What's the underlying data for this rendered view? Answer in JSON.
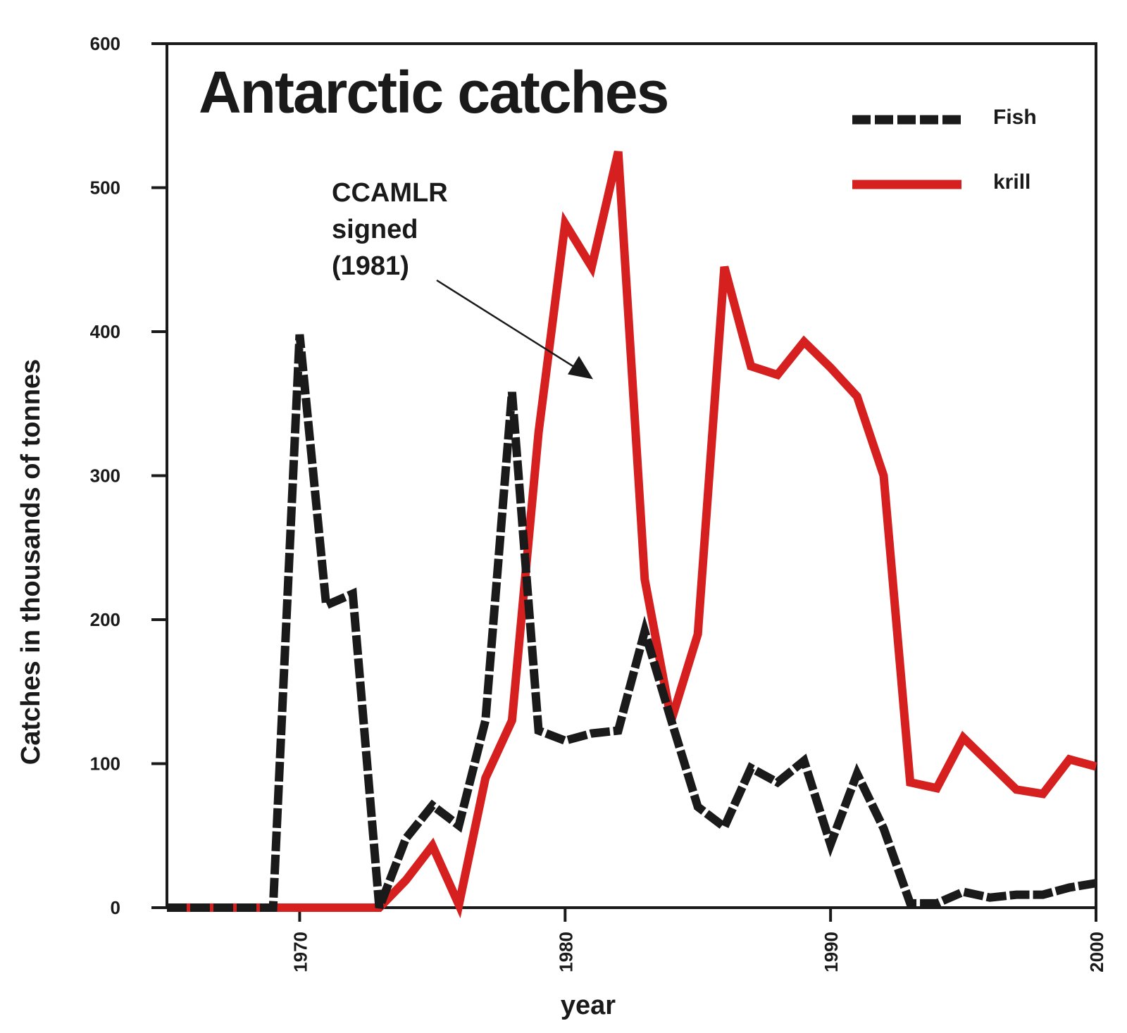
{
  "chart_data": {
    "type": "line",
    "title": "Antarctic catches",
    "xlabel": "year",
    "ylabel": "Catches in thousands of tonnes",
    "xlim": [
      1965,
      2000
    ],
    "ylim": [
      0,
      600
    ],
    "x_ticks": [
      1970,
      1980,
      1990,
      2000
    ],
    "y_ticks": [
      0,
      100,
      200,
      300,
      400,
      500,
      600
    ],
    "grid": false,
    "legend_position": "top-right",
    "annotation": {
      "lines": [
        "CCAMLR",
        "signed",
        "(1981)"
      ],
      "points_to_year": 1981
    },
    "series": [
      {
        "name": "Fish",
        "color": "#1a1a1a",
        "style": "dashed",
        "points": [
          [
            1965,
            0
          ],
          [
            1969,
            0
          ],
          [
            1970,
            398
          ],
          [
            1971,
            210
          ],
          [
            1972,
            218
          ],
          [
            1973,
            0
          ],
          [
            1974,
            48
          ],
          [
            1975,
            71
          ],
          [
            1976,
            57
          ],
          [
            1977,
            130
          ],
          [
            1978,
            358
          ],
          [
            1979,
            123
          ],
          [
            1980,
            116
          ],
          [
            1981,
            121
          ],
          [
            1982,
            123
          ],
          [
            1983,
            192
          ],
          [
            1984,
            130
          ],
          [
            1985,
            70
          ],
          [
            1986,
            56
          ],
          [
            1987,
            97
          ],
          [
            1988,
            87
          ],
          [
            1989,
            102
          ],
          [
            1990,
            44
          ],
          [
            1991,
            93
          ],
          [
            1992,
            55
          ],
          [
            1993,
            3
          ],
          [
            1994,
            3
          ],
          [
            1995,
            11
          ],
          [
            1996,
            7
          ],
          [
            1997,
            9
          ],
          [
            1998,
            9
          ],
          [
            1999,
            14
          ],
          [
            2000,
            17
          ]
        ]
      },
      {
        "name": "krill",
        "color": "#d62020",
        "style": "solid",
        "points": [
          [
            1965,
            0
          ],
          [
            1973,
            0
          ],
          [
            1974,
            19
          ],
          [
            1975,
            43
          ],
          [
            1976,
            2
          ],
          [
            1977,
            90
          ],
          [
            1978,
            130
          ],
          [
            1979,
            330
          ],
          [
            1980,
            475
          ],
          [
            1981,
            445
          ],
          [
            1982,
            525
          ],
          [
            1983,
            228
          ],
          [
            1984,
            130
          ],
          [
            1985,
            190
          ],
          [
            1986,
            445
          ],
          [
            1987,
            376
          ],
          [
            1988,
            370
          ],
          [
            1989,
            393
          ],
          [
            1990,
            375
          ],
          [
            1991,
            355
          ],
          [
            1992,
            300
          ],
          [
            1993,
            87
          ],
          [
            1994,
            83
          ],
          [
            1995,
            118
          ],
          [
            1996,
            100
          ],
          [
            1997,
            82
          ],
          [
            1998,
            79
          ],
          [
            1999,
            103
          ],
          [
            2000,
            98
          ]
        ]
      }
    ]
  }
}
